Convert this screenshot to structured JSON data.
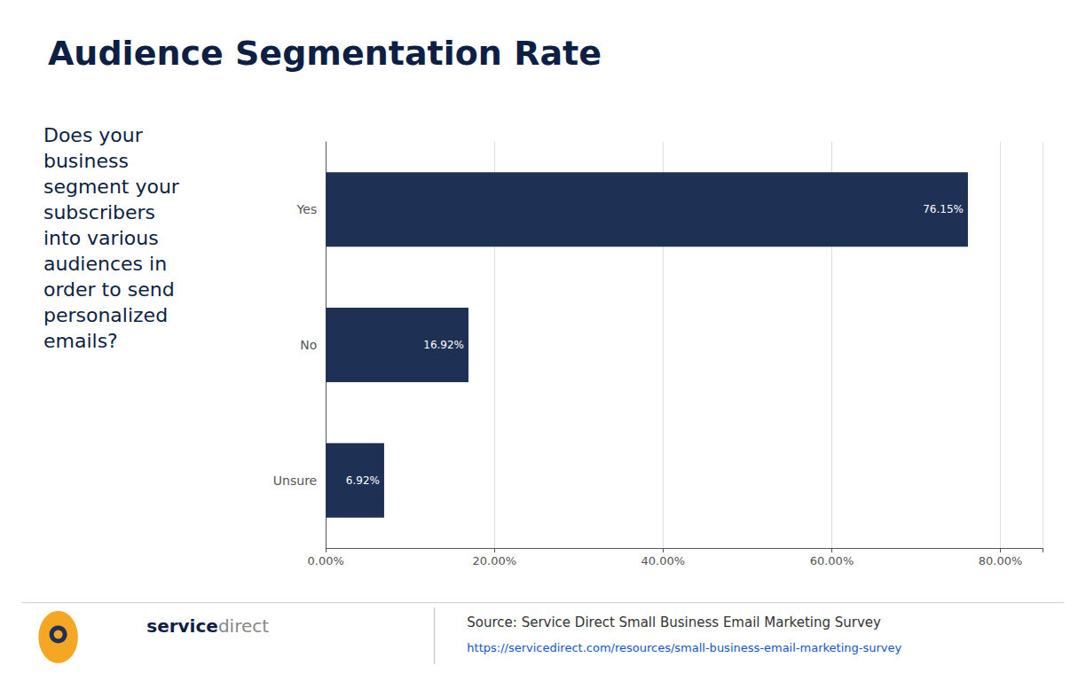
{
  "chart_data": {
    "type": "bar",
    "orientation": "horizontal",
    "title": "Audience Segmentation Rate",
    "categories": [
      "Yes",
      "No",
      "Unsure"
    ],
    "values": [
      76.15,
      16.92,
      6.92
    ],
    "value_labels": [
      "76.15%",
      "16.92%",
      "6.92%"
    ],
    "data_labels": true,
    "color": "#1e3155",
    "xlim": [
      0,
      85
    ],
    "xticks": [
      {
        "value": 0,
        "label": "0.00%"
      },
      {
        "value": 20,
        "label": "20.00%"
      },
      {
        "value": 40,
        "label": "40.00%"
      },
      {
        "value": 60,
        "label": "60.00%"
      },
      {
        "value": 80,
        "label": "80.00%"
      }
    ],
    "grid": true,
    "annotations": [
      "Does your\nbusiness\nsegment your\nsubscribers\ninto various\naudiences in\norder to send\npersonalized\nemails?",
      "service",
      "direct",
      "Source: Service Direct Small Business Email Marketing Survey",
      "https://servicedirect.com/resources/small-business-email-marketing-survey"
    ]
  }
}
